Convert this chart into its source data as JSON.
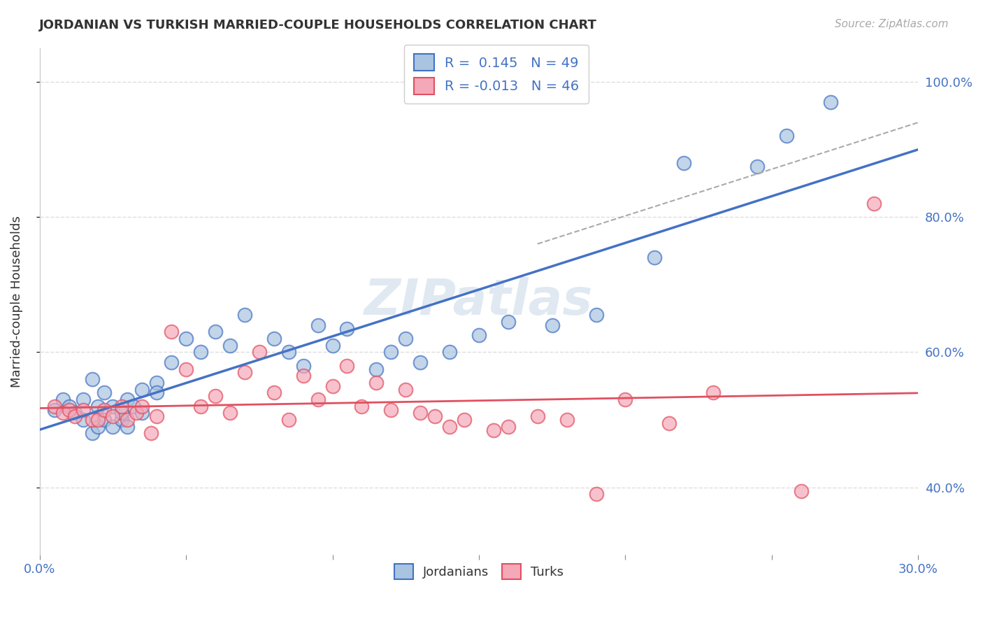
{
  "title": "JORDANIAN VS TURKISH MARRIED-COUPLE HOUSEHOLDS CORRELATION CHART",
  "source": "Source: ZipAtlas.com",
  "ylabel": "Married-couple Households",
  "xlim": [
    0.0,
    0.3
  ],
  "ylim": [
    0.3,
    1.05
  ],
  "y_ticks": [
    0.4,
    0.6,
    0.8,
    1.0
  ],
  "y_tick_labels": [
    "40.0%",
    "60.0%",
    "80.0%",
    "100.0%"
  ],
  "x_tick_positions": [
    0.0,
    0.05,
    0.1,
    0.15,
    0.2,
    0.25,
    0.3
  ],
  "x_tick_labels": [
    "0.0%",
    "",
    "",
    "",
    "",
    "",
    "30.0%"
  ],
  "watermark": "ZIPatlas",
  "R_jordanian": 0.145,
  "N_jordanian": 49,
  "R_turkish": -0.013,
  "N_turkish": 46,
  "color_jordanian_fill": "#a8c4e0",
  "color_turkish_fill": "#f4a8b8",
  "color_jordanian_edge": "#4472c4",
  "color_turkish_edge": "#e05060",
  "color_jordanian_line": "#4472c4",
  "color_turkish_line": "#e05060",
  "color_dashed": "#aaaaaa",
  "background_color": "#ffffff",
  "grid_color": "#dddddd",
  "jordanian_x": [
    0.005,
    0.008,
    0.01,
    0.012,
    0.015,
    0.015,
    0.018,
    0.018,
    0.02,
    0.02,
    0.022,
    0.022,
    0.025,
    0.025,
    0.028,
    0.028,
    0.03,
    0.03,
    0.032,
    0.035,
    0.035,
    0.04,
    0.04,
    0.045,
    0.05,
    0.055,
    0.06,
    0.065,
    0.07,
    0.08,
    0.085,
    0.09,
    0.095,
    0.1,
    0.105,
    0.115,
    0.12,
    0.125,
    0.13,
    0.14,
    0.15,
    0.16,
    0.175,
    0.19,
    0.21,
    0.22,
    0.245,
    0.255,
    0.27
  ],
  "jordanian_y": [
    0.515,
    0.53,
    0.52,
    0.51,
    0.5,
    0.53,
    0.48,
    0.56,
    0.49,
    0.52,
    0.5,
    0.54,
    0.49,
    0.52,
    0.5,
    0.51,
    0.49,
    0.53,
    0.52,
    0.51,
    0.545,
    0.555,
    0.54,
    0.585,
    0.62,
    0.6,
    0.63,
    0.61,
    0.655,
    0.62,
    0.6,
    0.58,
    0.64,
    0.61,
    0.635,
    0.575,
    0.6,
    0.62,
    0.585,
    0.6,
    0.625,
    0.645,
    0.64,
    0.655,
    0.74,
    0.88,
    0.875,
    0.92,
    0.97
  ],
  "turkish_x": [
    0.005,
    0.008,
    0.01,
    0.012,
    0.015,
    0.018,
    0.02,
    0.022,
    0.025,
    0.028,
    0.03,
    0.033,
    0.035,
    0.038,
    0.04,
    0.045,
    0.05,
    0.055,
    0.06,
    0.065,
    0.07,
    0.075,
    0.08,
    0.085,
    0.09,
    0.095,
    0.1,
    0.105,
    0.11,
    0.115,
    0.12,
    0.125,
    0.13,
    0.135,
    0.14,
    0.145,
    0.155,
    0.16,
    0.17,
    0.18,
    0.19,
    0.2,
    0.215,
    0.23,
    0.26,
    0.285
  ],
  "turkish_y": [
    0.52,
    0.51,
    0.515,
    0.505,
    0.515,
    0.5,
    0.5,
    0.515,
    0.505,
    0.52,
    0.5,
    0.51,
    0.52,
    0.48,
    0.505,
    0.63,
    0.575,
    0.52,
    0.535,
    0.51,
    0.57,
    0.6,
    0.54,
    0.5,
    0.565,
    0.53,
    0.55,
    0.58,
    0.52,
    0.555,
    0.515,
    0.545,
    0.51,
    0.505,
    0.49,
    0.5,
    0.485,
    0.49,
    0.505,
    0.5,
    0.39,
    0.53,
    0.495,
    0.54,
    0.395,
    0.82
  ]
}
